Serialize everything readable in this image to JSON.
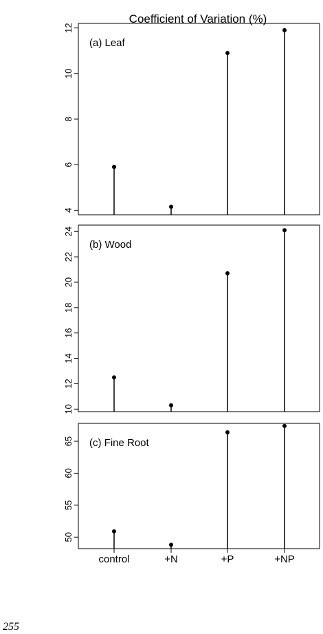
{
  "header": {
    "title": "Coefficient of Variation (%)"
  },
  "page_number": "255",
  "chart_data": [
    {
      "type": "stem",
      "label": "(a) Leaf",
      "values": [
        5.9,
        4.15,
        10.9,
        11.9
      ],
      "color": "#000000",
      "ylim": [
        3.8,
        12.2
      ],
      "yticks": [
        4,
        6,
        8,
        10,
        12
      ]
    },
    {
      "type": "stem",
      "label": "(b) Wood",
      "values": [
        12.5,
        10.3,
        20.7,
        24.1
      ],
      "color": "#000000",
      "ylim": [
        9.8,
        24.5
      ],
      "yticks": [
        10,
        12,
        14,
        16,
        18,
        20,
        22,
        24
      ]
    },
    {
      "type": "stem",
      "label": "(c) Fine Root",
      "categories": [
        "control",
        "+N",
        "+P",
        "+NP"
      ],
      "values": [
        50.9,
        48.8,
        66.4,
        67.4
      ],
      "color": "#000000",
      "ylim": [
        48.2,
        67.8
      ],
      "yticks": [
        50,
        55,
        60,
        65
      ]
    }
  ]
}
